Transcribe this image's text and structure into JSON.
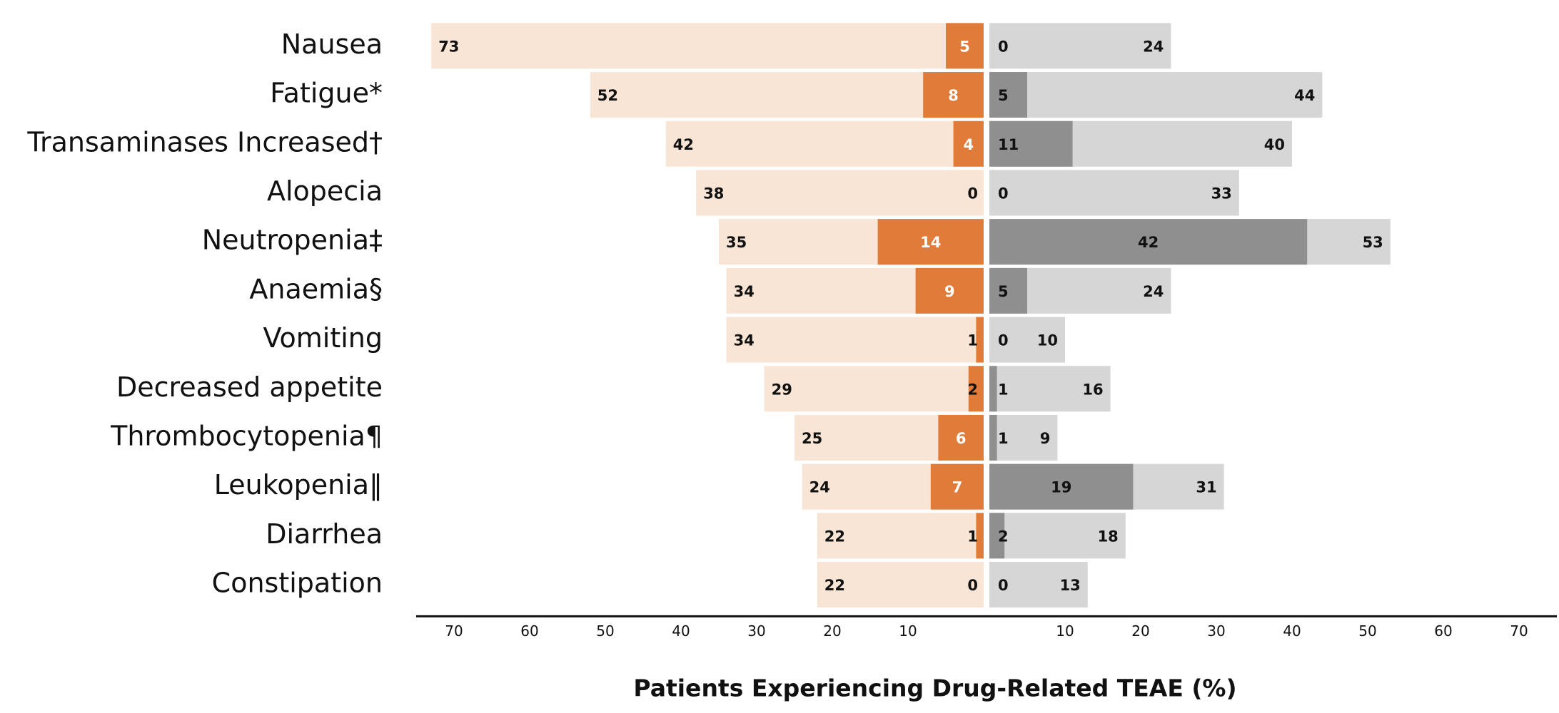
{
  "chart_data": {
    "type": "butterfly",
    "xlabel": "Patients Experiencing Drug-Related TEAE (%)",
    "categories": [
      "Nausea",
      "Fatigue*",
      "Transaminases Increased†",
      "Alopecia",
      "Neutropenia‡",
      "Anaemia§",
      "Vomiting",
      "Decreased appetite",
      "Thrombocytopenia¶",
      "Leukopenia‖",
      "Diarrhea",
      "Constipation"
    ],
    "xlim": [
      0,
      75
    ],
    "xticks": [
      10,
      20,
      30,
      40,
      50,
      60,
      70
    ],
    "x2lim": [
      0,
      75
    ],
    "x2ticks": [
      10,
      20,
      30,
      40,
      50,
      60,
      70
    ],
    "series": [
      {
        "color": "#f8e5d6",
        "side": "left",
        "values": [
          73,
          52,
          42,
          38,
          35,
          34,
          34,
          29,
          25,
          24,
          22,
          22
        ]
      },
      {
        "color": "#e07b39",
        "side": "left",
        "values": [
          5,
          8,
          4,
          0,
          14,
          9,
          1,
          2,
          6,
          7,
          1,
          0
        ]
      },
      {
        "color": "#d6d6d6",
        "side": "right",
        "axis": "x2",
        "values": [
          24,
          44,
          40,
          33,
          53,
          24,
          10,
          16,
          9,
          31,
          18,
          13
        ]
      },
      {
        "color": "#8f8f8f",
        "side": "right",
        "axis": "x2",
        "values": [
          0,
          5,
          11,
          0,
          42,
          5,
          0,
          1,
          1,
          19,
          2,
          0
        ]
      }
    ]
  }
}
